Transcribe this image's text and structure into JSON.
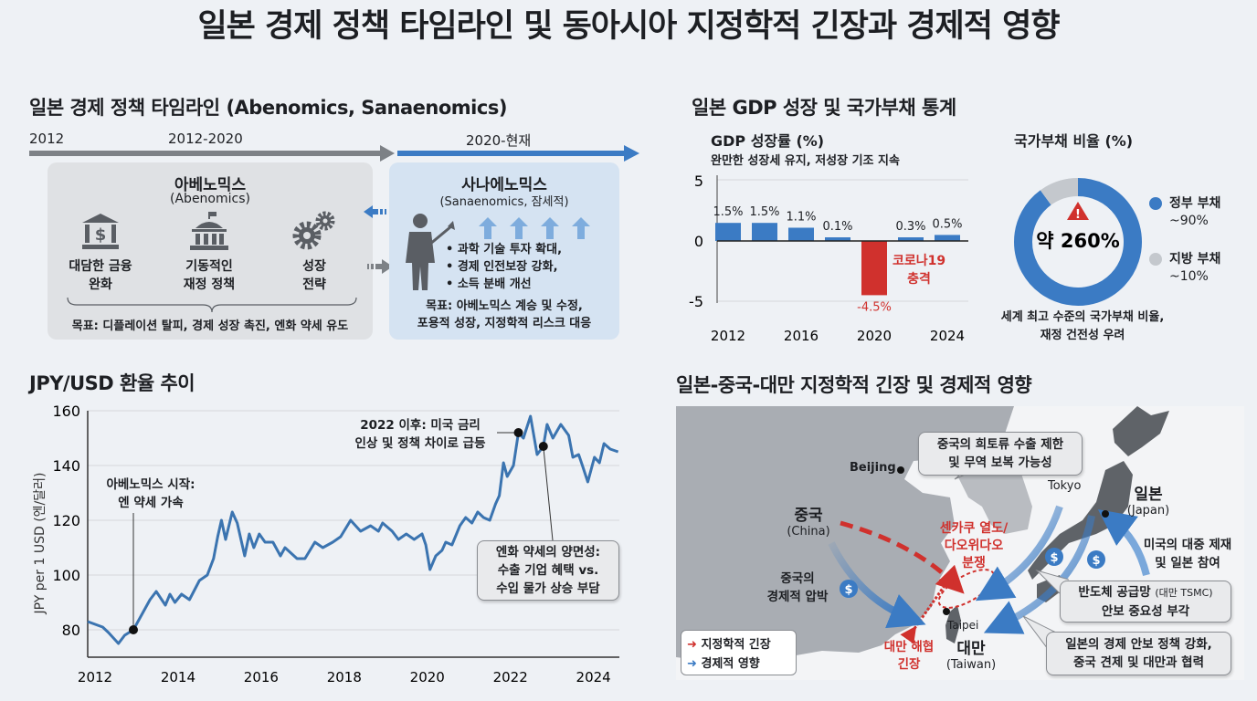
{
  "title": "일본 경제 정책 타임라인 및 동아시아 지정학적 긴장과 경제적 영향",
  "colors": {
    "blue": "#3b7bc4",
    "red": "#d0312d",
    "gray": "#7d8186",
    "abenomics_bg": "#dfe1e4",
    "sanae_bg": "#d5e3f2",
    "background": "#eef1f5"
  },
  "timeline": {
    "heading": "일본 경제 정책 타임라인 (Abenomics, Sanaenomics)",
    "labels": [
      "2012",
      "2012-2020",
      "2020-현재"
    ],
    "abenomics": {
      "title": "아베노믹스",
      "subtitle": "(Abenomics)",
      "pillars": [
        {
          "icon": "bank-dollar-icon",
          "line1": "대담한 금융",
          "line2": "완화"
        },
        {
          "icon": "government-building-icon",
          "line1": "기동적인",
          "line2": "재정 정책"
        },
        {
          "icon": "gears-icon",
          "line1": "성장",
          "line2": "전략"
        }
      ],
      "goal": "목표: 디플레이션 탈피, 경제 성장 촉진, 엔화 약세 유도"
    },
    "sanaenomics": {
      "title": "사나에노믹스",
      "subtitle": "(Sanaenomics, 잠세적)",
      "bullets": [
        "• 과학 기술 투자 확대,",
        "• 경제 인전보장 강화,",
        "• 소득 분배 개선"
      ],
      "goal_line1": "목표: 아베노믹스 계승 및 수정,",
      "goal_line2": "포용적 성장, 지정학적 리스크 대응"
    }
  },
  "stats": {
    "heading": "일본 GDP 성장 및 국가부채 통계"
  },
  "chart_data": [
    {
      "type": "bar",
      "title": "GDP 성장률 (%)",
      "subtitle": "완만한 성장세 유지, 저성장 기조 지속",
      "categories": [
        "2012",
        "2014",
        "2016",
        "2018",
        "2020",
        "2022",
        "2024"
      ],
      "values": [
        1.5,
        1.5,
        1.1,
        0.1,
        -4.5,
        0.3,
        0.5
      ],
      "data_labels": [
        "1.5%",
        "1.5%",
        "1.1%",
        "0.1%",
        "-4.5%",
        "0.3%",
        "0.5%"
      ],
      "x_tick_labels": [
        "2012",
        "2016",
        "2020",
        "2024"
      ],
      "y_ticks": [
        "5",
        "0",
        "-5"
      ],
      "ylim": [
        -5,
        5
      ],
      "highlight": {
        "category": "2020",
        "color": "#d0312d",
        "annotation_line1": "코로나19",
        "annotation_line2": "충격"
      }
    },
    {
      "type": "pie",
      "title": "국가부채 비율 (%)",
      "center_label": "약 260%",
      "center_icon": "warning-icon",
      "slices": [
        {
          "name": "정부 부채",
          "label": "~90%",
          "value": 90,
          "color": "#3b7bc4"
        },
        {
          "name": "지방 부채",
          "label": "~10%",
          "value": 10,
          "color": "#c4c8cd"
        }
      ],
      "caption_line1": "세계 최고 수준의 국가부채 비율,",
      "caption_line2": "재정 건전성 우려"
    },
    {
      "type": "line",
      "title": "JPY/USD 환율 추이",
      "ylabel": "JPY per 1 USD (엔/달러)",
      "x_ticks": [
        "2012",
        "2014",
        "2016",
        "2018",
        "2020",
        "2022",
        "2024"
      ],
      "y_ticks": [
        "80",
        "100",
        "120",
        "140",
        "160"
      ],
      "xlim": [
        2012,
        2024.8
      ],
      "ylim": [
        70,
        160
      ],
      "grid": "horizontal",
      "points": [
        [
          2012.0,
          83
        ],
        [
          2012.36,
          81
        ],
        [
          2012.5,
          79
        ],
        [
          2012.74,
          75
        ],
        [
          2012.89,
          78
        ],
        [
          2013.1,
          80
        ],
        [
          2013.5,
          91
        ],
        [
          2013.65,
          94
        ],
        [
          2013.87,
          89
        ],
        [
          2013.98,
          93
        ],
        [
          2014.1,
          90
        ],
        [
          2014.26,
          93
        ],
        [
          2014.45,
          91
        ],
        [
          2014.69,
          98
        ],
        [
          2014.88,
          100
        ],
        [
          2015.03,
          106
        ],
        [
          2015.13,
          114
        ],
        [
          2015.22,
          120
        ],
        [
          2015.32,
          113
        ],
        [
          2015.48,
          123
        ],
        [
          2015.6,
          119
        ],
        [
          2015.78,
          107
        ],
        [
          2015.89,
          115
        ],
        [
          2016.0,
          110
        ],
        [
          2016.13,
          115
        ],
        [
          2016.27,
          112
        ],
        [
          2016.46,
          112
        ],
        [
          2016.64,
          107
        ],
        [
          2016.75,
          110
        ],
        [
          2017.04,
          106
        ],
        [
          2017.23,
          106
        ],
        [
          2017.47,
          112
        ],
        [
          2017.66,
          110
        ],
        [
          2017.9,
          112
        ],
        [
          2018.09,
          114
        ],
        [
          2018.33,
          120
        ],
        [
          2018.57,
          116
        ],
        [
          2018.81,
          118
        ],
        [
          2019.0,
          116
        ],
        [
          2019.1,
          119
        ],
        [
          2019.33,
          116
        ],
        [
          2019.48,
          113
        ],
        [
          2019.67,
          115
        ],
        [
          2019.86,
          113
        ],
        [
          2020.05,
          115
        ],
        [
          2020.14,
          111
        ],
        [
          2020.24,
          102
        ],
        [
          2020.38,
          107
        ],
        [
          2020.53,
          109
        ],
        [
          2020.62,
          112
        ],
        [
          2020.77,
          111
        ],
        [
          2020.96,
          118
        ],
        [
          2021.1,
          121
        ],
        [
          2021.25,
          119
        ],
        [
          2021.39,
          123
        ],
        [
          2021.53,
          121
        ],
        [
          2021.68,
          120
        ],
        [
          2021.82,
          126
        ],
        [
          2021.91,
          129
        ],
        [
          2022.01,
          141
        ],
        [
          2022.1,
          136
        ],
        [
          2022.25,
          140
        ],
        [
          2022.37,
          152
        ],
        [
          2022.49,
          150
        ],
        [
          2022.66,
          158
        ],
        [
          2022.82,
          144
        ],
        [
          2022.97,
          147
        ],
        [
          2023.06,
          155
        ],
        [
          2023.2,
          150
        ],
        [
          2023.39,
          155
        ],
        [
          2023.58,
          151
        ],
        [
          2023.68,
          143
        ],
        [
          2023.82,
          144
        ],
        [
          2023.91,
          140
        ],
        [
          2024.04,
          134
        ],
        [
          2024.2,
          143
        ],
        [
          2024.32,
          141
        ],
        [
          2024.43,
          148
        ],
        [
          2024.58,
          146
        ],
        [
          2024.77,
          145
        ]
      ],
      "annotations": [
        {
          "point": [
            2013.1,
            80
          ],
          "line1": "아베노믹스 시작:",
          "line2": "엔 약세 가속"
        },
        {
          "point": [
            2022.37,
            152
          ],
          "line1": "2022 이후: 미국 금리",
          "line2": "인상 및 정책 차이로 급등"
        },
        {
          "point": [
            2022.97,
            147
          ],
          "line1": "엔화 약세의 양면성:",
          "line2": "수출 기업 혜택 vs.",
          "line3": "수입 물가 상승 부담"
        }
      ]
    }
  ],
  "map": {
    "heading": "일본-중국-대만 지정학적 긴장 및 경제적 영향",
    "china": "중국",
    "china_en": "(China)",
    "beijing": "Beijing",
    "tokyo": "Tokyo",
    "japan": "일본",
    "japan_en": "(Japan)",
    "taipei": "Taipei",
    "taiwan": "대만",
    "taiwan_en": "(Taiwan)",
    "rare_earth_line1": "중국의 희토류 수출 제한",
    "rare_earth_line2": "및 무역 보복 가능성",
    "senkaku_line1": "센카쿠 열도/",
    "senkaku_line2": "다오위다오",
    "senkaku_line3": "분쟁",
    "china_pressure_line1": "중국의",
    "china_pressure_line2": "경제적 압박",
    "us_sanction_line1": "미국의 대중 제재",
    "us_sanction_line2": "및 일본 참여",
    "semiconductor_line1": "반도체 공급망",
    "semiconductor_small": "(대만 TSMC)",
    "semiconductor_line2": "안보 중요성 부각",
    "security_line1": "일본의 경제 안보 정책 강화,",
    "security_line2": "중국 견제 및 대만과 협력",
    "strait_line1": "대만 해협",
    "strait_line2": "긴장",
    "legend": [
      {
        "label": "지정학적 긴장",
        "color": "#d0312d"
      },
      {
        "label": "경제적 영향",
        "color": "#3b7bc4"
      }
    ],
    "dollar_symbol": "$"
  }
}
